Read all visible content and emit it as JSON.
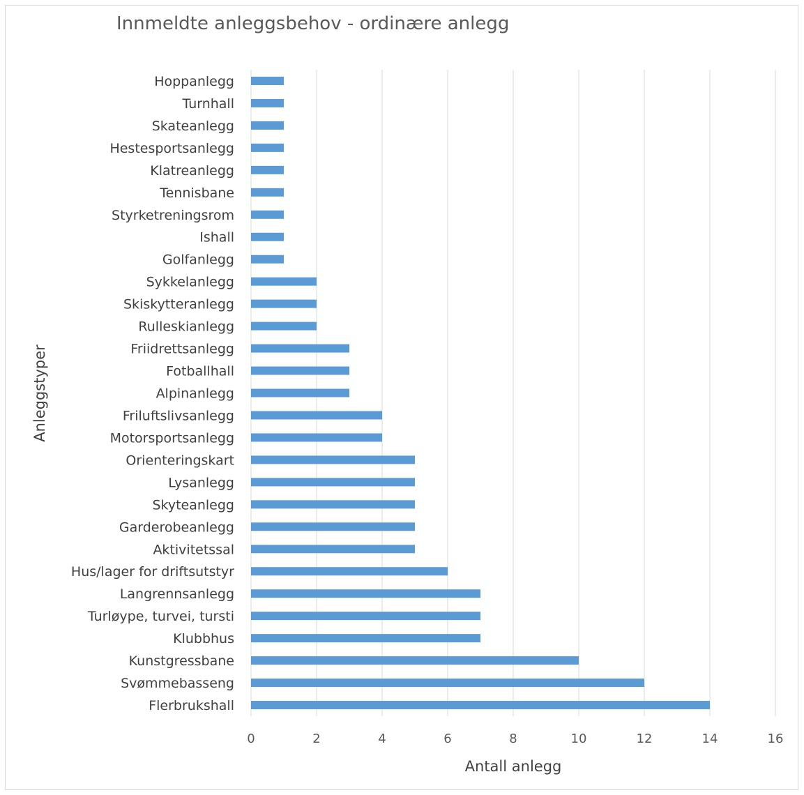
{
  "chart_data": {
    "type": "bar",
    "orientation": "horizontal",
    "title": "Innmeldte anleggsbehov - ordinære anlegg",
    "xlabel": "Antall anlegg",
    "ylabel": "Anleggstyper",
    "xlim": [
      0,
      16
    ],
    "xticks": [
      0,
      2,
      4,
      6,
      8,
      10,
      12,
      14,
      16
    ],
    "grid": "vertical",
    "bar_color": "#5b9bd5",
    "categories": [
      "Hoppanlegg",
      "Turnhall",
      "Skateanlegg",
      "Hestesportsanlegg",
      "Klatreanlegg",
      "Tennisbane",
      "Styrketreningsrom",
      "Ishall",
      "Golfanlegg",
      "Sykkelanlegg",
      "Skiskytteranlegg",
      "Rulleskianlegg",
      "Friidrettsanlegg",
      "Fotballhall",
      "Alpinanlegg",
      "Friluftslivsanlegg",
      "Motorsportsanlegg",
      "Orienteringskart",
      "Lysanlegg",
      "Skyteanlegg",
      "Garderobeanlegg",
      "Aktivitetssal",
      "Hus/lager for driftsutstyr",
      "Langrennsanlegg",
      "Turløype, turvei, tursti",
      "Klubbhus",
      "Kunstgressbane",
      "Svømmebasseng",
      "Flerbrukshall"
    ],
    "values": [
      1,
      1,
      1,
      1,
      1,
      1,
      1,
      1,
      1,
      2,
      2,
      2,
      3,
      3,
      3,
      4,
      4,
      5,
      5,
      5,
      5,
      5,
      6,
      7,
      7,
      7,
      10,
      12,
      14
    ]
  }
}
